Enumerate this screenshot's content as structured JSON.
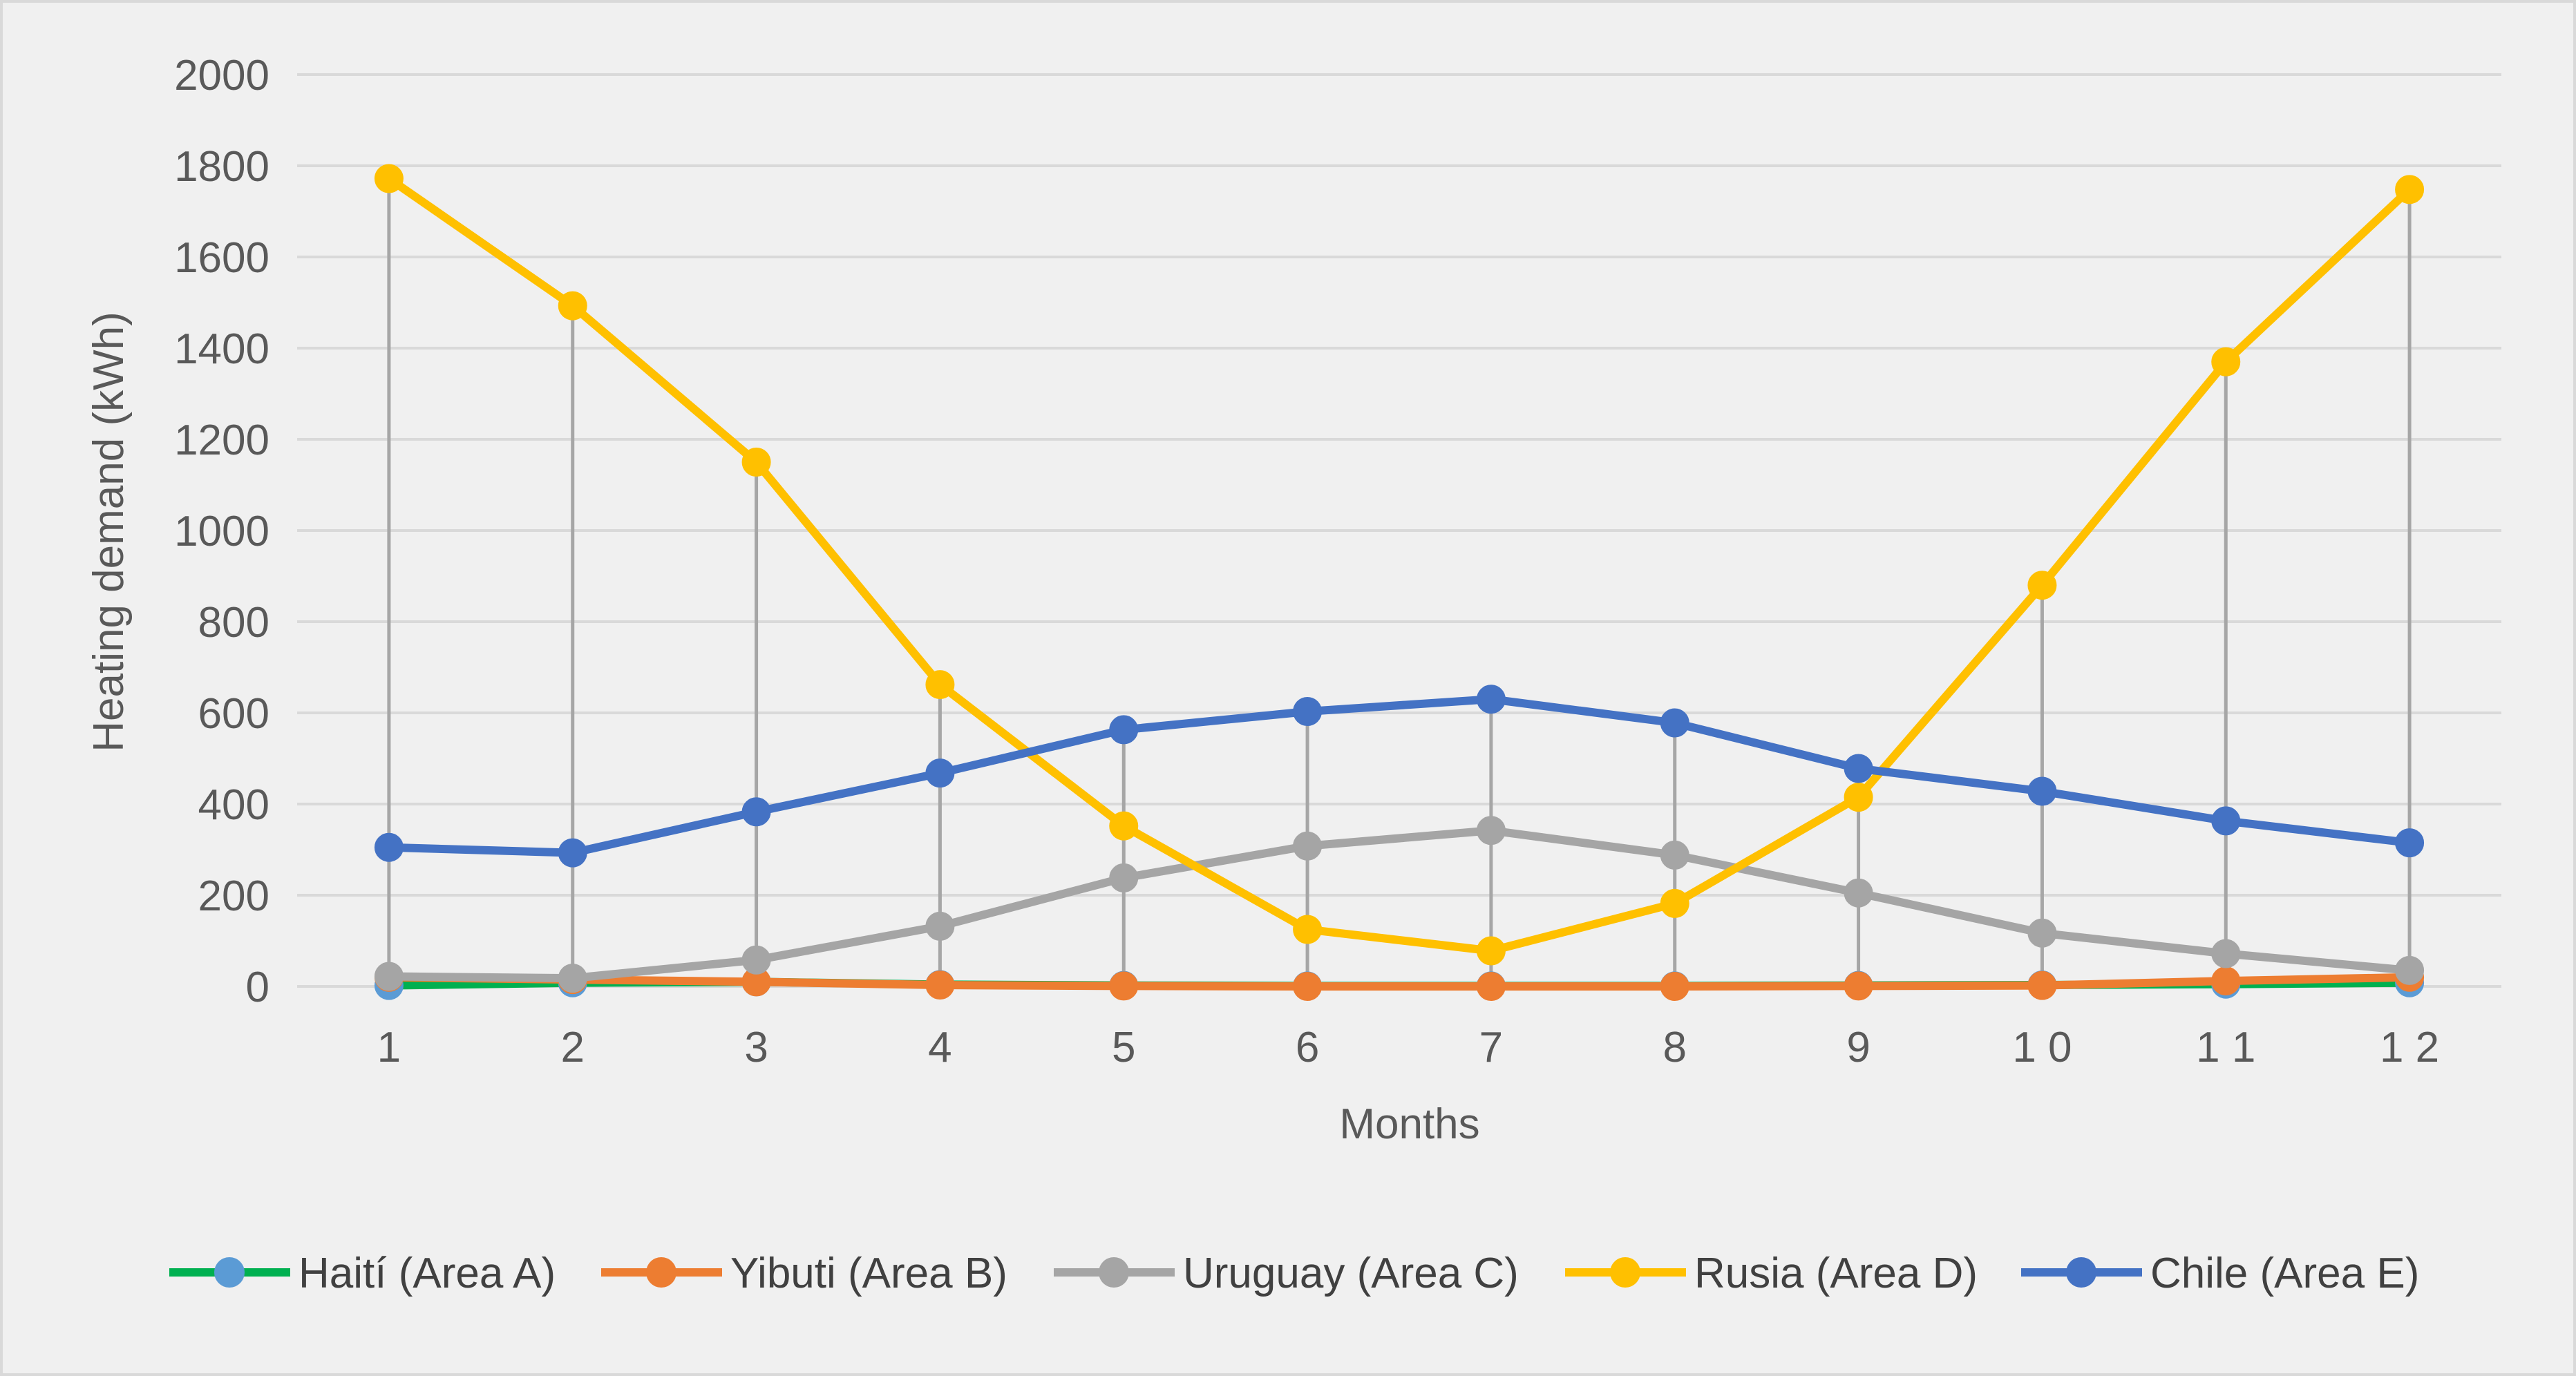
{
  "chart_data": {
    "type": "line",
    "title": "",
    "xlabel": "Months",
    "ylabel": "Heating demand (kWh)",
    "categories": [
      "1",
      "2",
      "3",
      "4",
      "5",
      "6",
      "7",
      "8",
      "9",
      "1 0",
      "1 1",
      "1 2"
    ],
    "x": [
      1,
      2,
      3,
      4,
      5,
      6,
      7,
      8,
      9,
      10,
      11,
      12
    ],
    "ylim": [
      0,
      2000
    ],
    "yticks": [
      "0",
      "200",
      "400",
      "600",
      "800",
      "1000",
      "1200",
      "1400",
      "1600",
      "1800",
      "2000"
    ],
    "grid": true,
    "high_low_lines": true,
    "legend_position": "bottom",
    "series": [
      {
        "name": "Haití (Area A)",
        "color": "#00B050",
        "marker_color": "#5B9BD5",
        "values": [
          2,
          8,
          10,
          4,
          2,
          1,
          1,
          1,
          2,
          3,
          5,
          8
        ]
      },
      {
        "name": "Yibuti (Area B)",
        "color": "#ED7D31",
        "marker_color": "#ED7D31",
        "values": [
          20,
          15,
          10,
          3,
          1,
          0,
          0,
          0,
          1,
          2,
          12,
          20
        ]
      },
      {
        "name": "Uruguay (Area C)",
        "color": "#A5A5A5",
        "marker_color": "#A5A5A5",
        "values": [
          22,
          18,
          58,
          132,
          238,
          308,
          342,
          288,
          205,
          117,
          72,
          35
        ]
      },
      {
        "name": "Rusia (Area D)",
        "color": "#FFC000",
        "marker_color": "#FFC000",
        "values": [
          1772,
          1493,
          1150,
          662,
          352,
          125,
          78,
          182,
          415,
          880,
          1370,
          1748
        ]
      },
      {
        "name": "Chile (Area E)",
        "color": "#4472C4",
        "marker_color": "#4472C4",
        "values": [
          305,
          293,
          383,
          468,
          563,
          603,
          630,
          578,
          478,
          428,
          363,
          315
        ]
      }
    ]
  },
  "style": {
    "plot_bg": "#F0F0F0",
    "grid_color": "#D9D9D9",
    "hilo_color": "#A6A6A6",
    "border_color": "#D9D9D9"
  }
}
